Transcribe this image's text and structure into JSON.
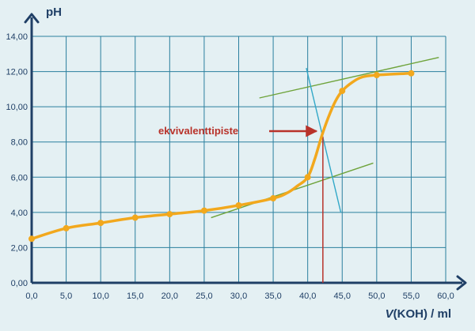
{
  "chart_data": {
    "type": "line",
    "ylabel": "pH",
    "xlabel_italic": "V",
    "xlabel_rest": "(KOH) / ml",
    "x_ticks": [
      "0,0",
      "5,0",
      "10,0",
      "15,0",
      "20,0",
      "25,0",
      "30,0",
      "35,0",
      "40,0",
      "45,0",
      "50,0",
      "55,0",
      "60,0"
    ],
    "y_ticks": [
      "0,00",
      "2,00",
      "4,00",
      "6,00",
      "8,00",
      "10,00",
      "12,00",
      "14,00"
    ],
    "xlim": [
      0,
      60
    ],
    "ylim": [
      0,
      14
    ],
    "grid": true,
    "series": [
      {
        "x": [
          0,
          5,
          10,
          15,
          20,
          25,
          30,
          35,
          40,
          45,
          50,
          55
        ],
        "y": [
          2.5,
          3.1,
          3.4,
          3.7,
          3.9,
          4.1,
          4.4,
          4.8,
          6.0,
          10.9,
          11.8,
          11.9
        ]
      }
    ],
    "curve_path": [
      [
        0,
        2.5
      ],
      [
        5,
        3.1
      ],
      [
        10,
        3.4
      ],
      [
        15,
        3.7
      ],
      [
        20,
        3.9
      ],
      [
        25,
        4.1
      ],
      [
        30,
        4.4
      ],
      [
        35,
        4.8
      ],
      [
        37,
        5.1
      ],
      [
        38.5,
        5.5
      ],
      [
        40,
        6.0
      ],
      [
        41,
        7.0
      ],
      [
        42,
        8.3
      ],
      [
        43,
        9.4
      ],
      [
        44,
        10.3
      ],
      [
        45,
        10.9
      ],
      [
        46.5,
        11.4
      ],
      [
        48,
        11.7
      ],
      [
        50,
        11.8
      ],
      [
        55,
        11.9
      ]
    ],
    "tangent_lines": [
      {
        "from": [
          26,
          3.7
        ],
        "to": [
          49.5,
          6.8
        ]
      },
      {
        "from": [
          33,
          10.5
        ],
        "to": [
          59,
          12.8
        ]
      },
      {
        "from": [
          39.8,
          12.2
        ],
        "to": [
          44.8,
          4.0
        ]
      }
    ],
    "equivalence_point": {
      "x": 42.2,
      "y": 8.3
    },
    "annotation": {
      "text": "ekvivalenttipiste",
      "target_x": 41.5,
      "target_y": 8.5
    },
    "colors": {
      "background": "#e4f0f3",
      "grid": "#2a7f9e",
      "axis": "#1f3f66",
      "curve": "#f2a81d",
      "point": "#f2a81d",
      "tangent_green": "#6ea33a",
      "tangent_blue": "#32a8c8",
      "annotation": "#b8322a",
      "marker_line": "#b8322a"
    }
  }
}
